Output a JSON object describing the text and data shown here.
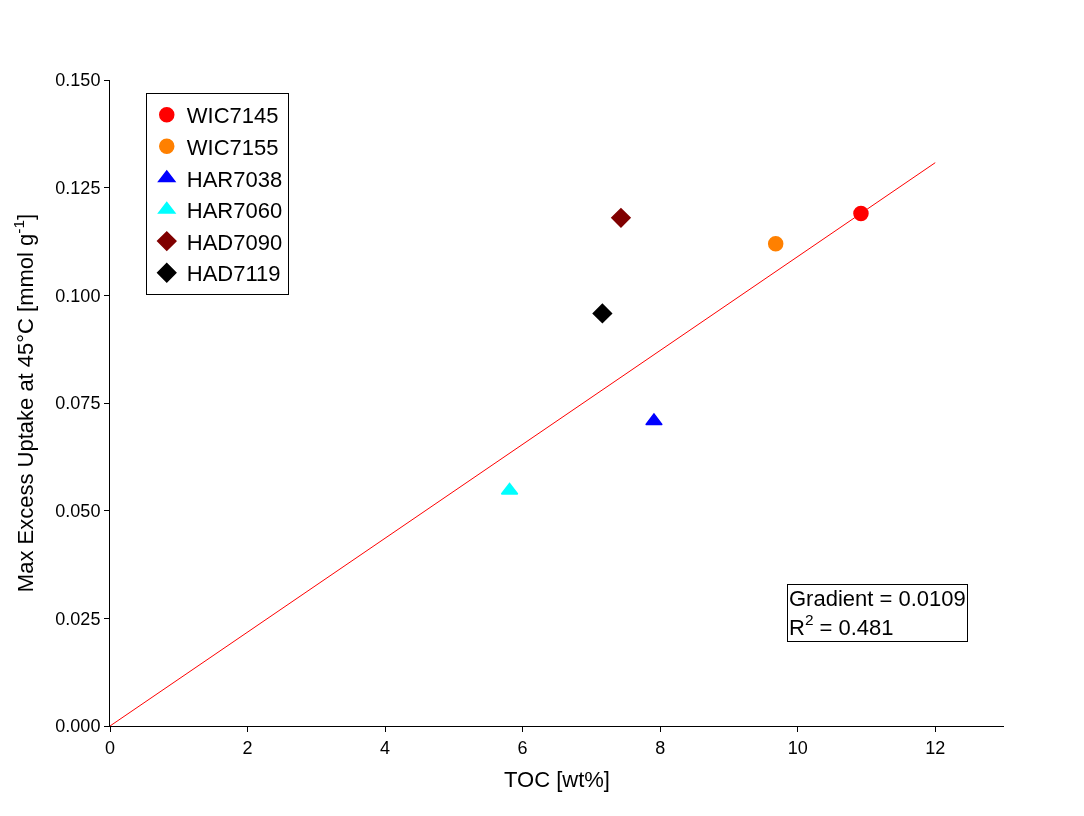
{
  "chart_data": {
    "type": "scatter",
    "xlabel": "TOC [wt%]",
    "ylabel": "Max Excess Uptake at 45°C [mmol g$^{-1}$]",
    "xlim": [
      0,
      13
    ],
    "xticks": [
      0,
      2,
      4,
      6,
      8,
      10,
      12
    ],
    "ylim": [
      0,
      0.15
    ],
    "yticks": [
      {
        "value": 0,
        "label": "0.000"
      },
      {
        "value": 0.025,
        "label": "0.025"
      },
      {
        "value": 0.05,
        "label": "0.050"
      },
      {
        "value": 0.075,
        "label": "0.075"
      },
      {
        "value": 0.1,
        "label": "0.100"
      },
      {
        "value": 0.125,
        "label": "0.125"
      },
      {
        "value": 0.15,
        "label": "0.150"
      }
    ],
    "legend": "top left",
    "series": [
      {
        "name": "WIC7145",
        "color": "#ff0000",
        "marker": "circle",
        "x": [
          10.92
        ],
        "values": [
          0.119
        ]
      },
      {
        "name": "WIC7155",
        "color": "#ff8000",
        "marker": "circle",
        "x": [
          9.68
        ],
        "values": [
          0.112
        ]
      },
      {
        "name": "HAR7038",
        "color": "#0000ff",
        "marker": "triangle",
        "x": [
          7.91
        ],
        "values": [
          0.0708
        ]
      },
      {
        "name": "HAR7060",
        "color": "#00ffff",
        "marker": "triangle",
        "x": [
          5.81
        ],
        "values": [
          0.0547
        ]
      },
      {
        "name": "HAD7090",
        "color": "#800000",
        "marker": "diamond",
        "x": [
          7.43
        ],
        "values": [
          0.118
        ]
      },
      {
        "name": "HAD7119",
        "color": "#000000",
        "marker": "diamond",
        "x": [
          7.16
        ],
        "values": [
          0.0958
        ]
      },
      {
        "type": "line",
        "color": "#ff0000",
        "marker": "none",
        "x": [
          0,
          12
        ],
        "values": [
          0,
          0.1308
        ]
      }
    ],
    "annotations": [
      "Gradient = 0.0109\nR$^{2}$ = 0.481"
    ]
  }
}
